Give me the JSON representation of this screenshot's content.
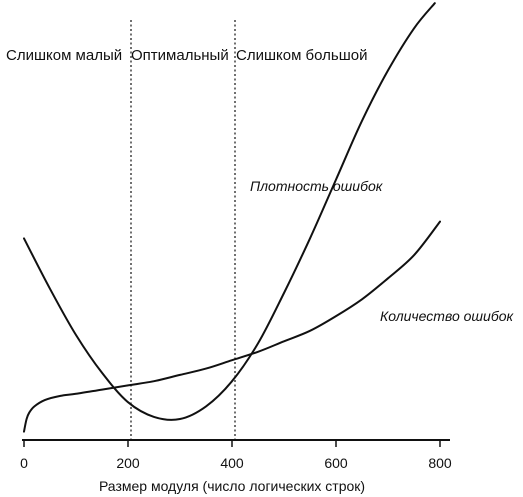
{
  "chart_data": {
    "type": "line",
    "title": "",
    "xlabel": "Размер модуля (число логических строк)",
    "ylabel": "",
    "xlim": [
      0,
      800
    ],
    "ylim": [
      0,
      100
    ],
    "x_ticks": [
      0,
      200,
      400,
      600,
      800
    ],
    "grid": false,
    "series": [
      {
        "name": "Плотность ошибок",
        "x": [
          0,
          50,
          100,
          150,
          200,
          250,
          300,
          350,
          400,
          450,
          500,
          550,
          600,
          650,
          700,
          750,
          790
        ],
        "y": [
          48,
          36,
          25,
          16,
          9,
          5.5,
          5,
          8,
          14,
          23,
          35,
          48,
          62,
          76,
          88,
          98,
          104
        ]
      },
      {
        "name": "Количество ошибок",
        "x": [
          0,
          5,
          10,
          20,
          40,
          70,
          100,
          150,
          200,
          250,
          300,
          350,
          400,
          450,
          500,
          550,
          600,
          650,
          700,
          750,
          800
        ],
        "y": [
          2,
          5,
          6.5,
          8,
          9.5,
          10.5,
          11,
          12,
          13,
          14,
          15.5,
          17,
          19,
          21,
          23.5,
          26,
          29.5,
          33.5,
          38.5,
          44,
          52
        ]
      }
    ],
    "dividers": [
      200,
      400
    ],
    "zones": [
      "Слишком малый",
      "Оптимальный",
      "Слишком большой"
    ]
  }
}
